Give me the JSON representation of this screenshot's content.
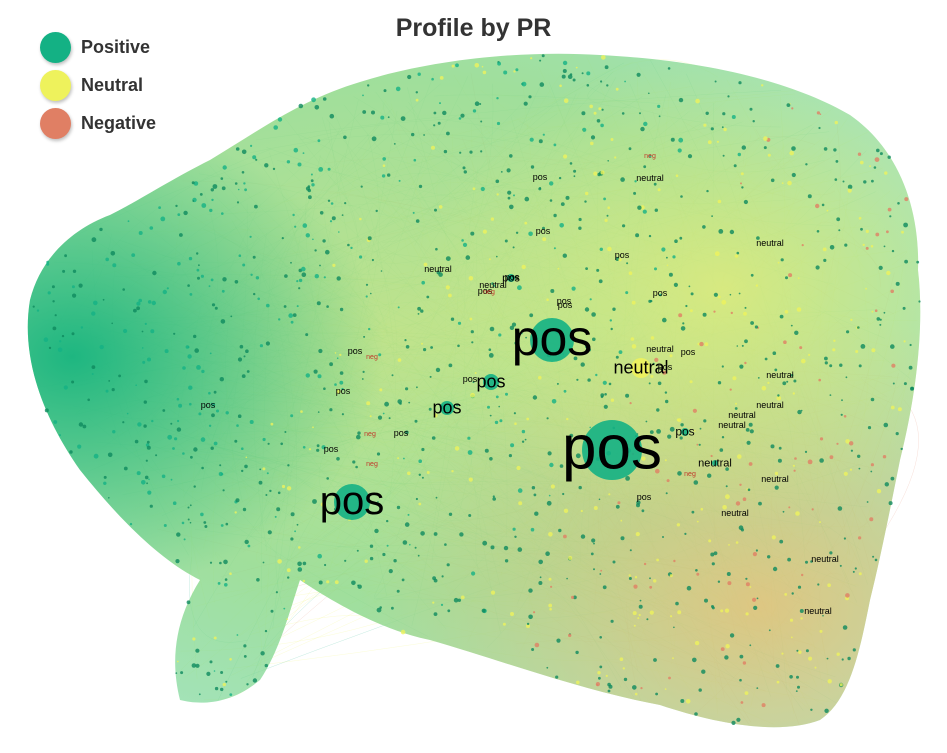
{
  "title": "Profile by PR",
  "legend": [
    {
      "label": "Positive",
      "color": "#14b184"
    },
    {
      "label": "Neutral",
      "color": "#eef25c"
    },
    {
      "label": "Negative",
      "color": "#e07f64"
    }
  ],
  "colors": {
    "positive": "#14b184",
    "neutral": "#eef25c",
    "negative": "#e07f64",
    "label_text": "#000000",
    "negative_small_label": "#c0392b"
  },
  "hub_labels": [
    {
      "text": "pos",
      "size": "xl"
    },
    {
      "text": "pos",
      "size": "l"
    },
    {
      "text": "pos",
      "size": "l"
    },
    {
      "text": "neutral",
      "size": "m"
    },
    {
      "text": "pos",
      "size": "m"
    },
    {
      "text": "pos",
      "size": "m"
    },
    {
      "text": "pos",
      "size": "s"
    },
    {
      "text": "neutral",
      "size": "s"
    },
    {
      "text": "pos",
      "size": "s"
    }
  ],
  "small_labels": [
    "pos",
    "neutral",
    "pos",
    "pos",
    "neutral",
    "pos",
    "pos",
    "neutral",
    "pos",
    "neutral",
    "pos",
    "neutral",
    "pos",
    "pos",
    "pos",
    "neutral",
    "pos",
    "neutral",
    "pos",
    "pos",
    "neutral",
    "neutral",
    "neutral",
    "neutral",
    "pos",
    "neutral",
    "neg",
    "neg",
    "neg",
    "neg",
    "neg",
    "neg",
    "pos",
    "neutral",
    "pos",
    "pos"
  ]
}
